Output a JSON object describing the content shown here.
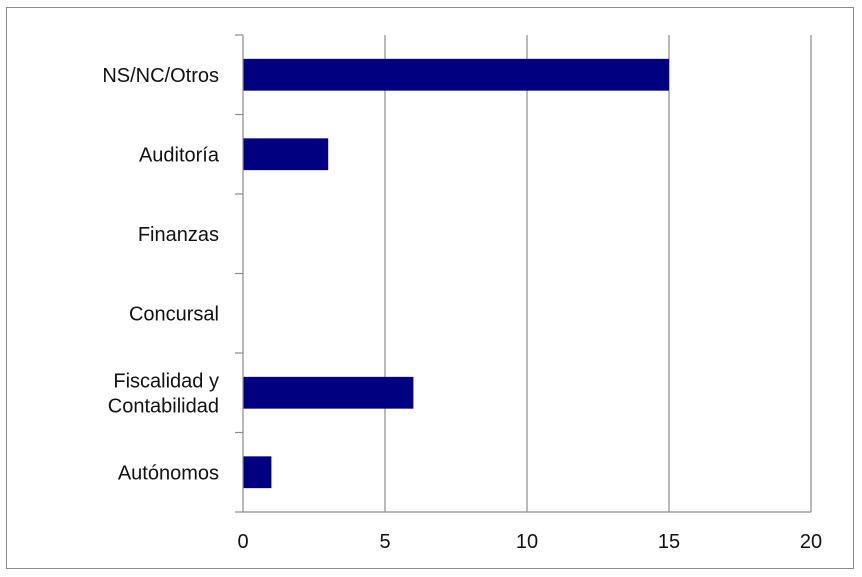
{
  "chart_data": {
    "type": "bar",
    "orientation": "horizontal",
    "categories": [
      "NS/NC/Otros",
      "Auditoría",
      "Finanzas",
      "Concursal",
      "Fiscalidad y Contabilidad",
      "Autónomos"
    ],
    "category_lines": [
      [
        "NS/NC/Otros"
      ],
      [
        "Auditoría"
      ],
      [
        "Finanzas"
      ],
      [
        "Concursal"
      ],
      [
        "Fiscalidad y",
        "Contabilidad"
      ],
      [
        "Autónomos"
      ]
    ],
    "values": [
      15,
      3,
      0,
      0,
      6,
      1
    ],
    "xlim": [
      0,
      20
    ],
    "xticks": [
      "0",
      "5",
      "10",
      "15",
      "20"
    ],
    "grid": "vertical",
    "legend": "none",
    "bar_color": "#000080",
    "title": "",
    "xlabel": "",
    "ylabel": ""
  }
}
